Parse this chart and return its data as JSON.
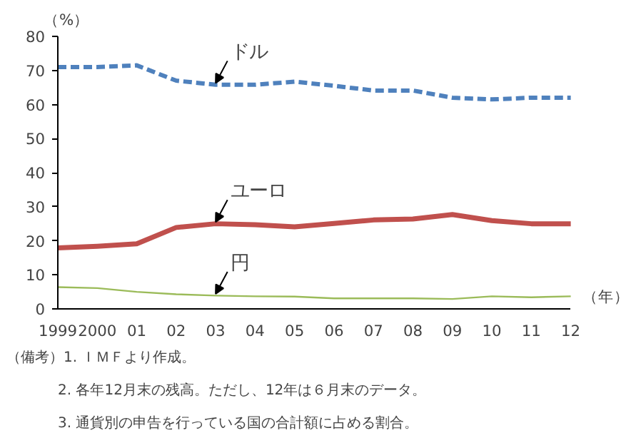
{
  "chart_data": {
    "type": "line",
    "ylabel": "（%）",
    "xlabel": "（年）",
    "categories": [
      "1999",
      "2000",
      "01",
      "02",
      "03",
      "04",
      "05",
      "06",
      "07",
      "08",
      "09",
      "10",
      "11",
      "12"
    ],
    "ylim": [
      0,
      80
    ],
    "yticks": [
      0,
      10,
      20,
      30,
      40,
      50,
      60,
      70,
      80
    ],
    "grid": false,
    "marker": "none",
    "series": [
      {
        "color": "#4f81bd",
        "line_style": "dashed",
        "values": [
          71,
          71,
          71.5,
          67,
          65.8,
          65.8,
          66.7,
          65.5,
          64.1,
          64.1,
          62,
          61.5,
          62,
          62
        ]
      },
      {
        "color": "#c0504d",
        "line_style": "solid",
        "values": [
          17.9,
          18.4,
          19.1,
          23.9,
          25,
          24.7,
          24.1,
          25.1,
          26.1,
          26.4,
          27.7,
          25.9,
          25,
          25
        ]
      },
      {
        "color": "#9bbb59",
        "line_style": "solid",
        "values": [
          6.4,
          6.1,
          5.0,
          4.3,
          3.9,
          3.7,
          3.6,
          3.1,
          3.1,
          3.1,
          2.9,
          3.7,
          3.4,
          3.7
        ]
      }
    ],
    "annotations": [
      {
        "text": "ドル",
        "x": "03",
        "y": 65.8
      },
      {
        "text": "ユーロ",
        "x": "03",
        "y": 25
      },
      {
        "text": "円",
        "x": "03",
        "y": 3.9
      },
      "（備考）1. ＩＭＦより作成。",
      "2. 各年12月末の残高。ただし、12年は６月末のデータ。",
      "3. 通貨別の申告を行っている国の合計額に占める割合。"
    ]
  }
}
